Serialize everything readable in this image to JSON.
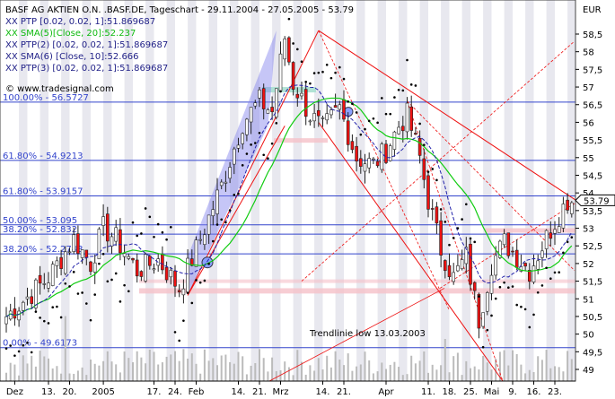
{
  "chart_data": {
    "type": "candlestick",
    "title": "BASF AG AKTIEN O.N. .BASF.DE, Tageschart - 29.11.2004 - 27.05.2005 - 53.79",
    "currency_label": "EUR",
    "indicators": [
      "XX PTP [0.02, 0.02, 1]:51.869687",
      "XX SMA(5)[Close, 20]:52.237",
      "XX PTP(2) [0.02, 0.02, 1]:51.869687",
      "XX SMA(6) [Close, 10]:52.666",
      "XX PTP(3) [0.02, 0.02, 1]:51.869687"
    ],
    "copyright": "© www.tradesignal.com",
    "last_price": "53.79",
    "annotation": "Trendlinie low 13.03.2003",
    "y_axis": {
      "ticks": [
        49,
        49.5,
        50,
        50.5,
        51,
        51.5,
        52,
        52.5,
        53,
        53.5,
        54,
        54.5,
        55,
        55.5,
        56,
        56.5,
        57,
        57.5,
        58,
        58.5
      ],
      "labels": [
        "49",
        "49,5",
        "50",
        "50,5",
        "51",
        "51,5",
        "52",
        "52,5",
        "53",
        "53,5",
        "54",
        "54,5",
        "55",
        "55,5",
        "56",
        "56,5",
        "57",
        "57,5",
        "58",
        "58,5"
      ],
      "range": [
        48.9,
        58.85
      ]
    },
    "x_axis": {
      "labels": [
        "Dez",
        "13.",
        "20.",
        "2005",
        "17.",
        "24.",
        "Feb",
        "14.",
        "21.",
        "Mrz",
        "14.",
        "21.",
        "Apr",
        "11.",
        "18.",
        "25.",
        "Mai",
        "9.",
        "16.",
        "23."
      ],
      "label_bar_index": [
        2,
        10,
        15,
        23,
        35,
        40,
        45,
        55,
        60,
        65,
        75,
        80,
        90,
        100,
        105,
        110,
        115,
        120,
        125,
        130
      ]
    },
    "fib_levels": [
      {
        "label": "100.00% - 56.5727",
        "value": 56.5727
      },
      {
        "label": "61.80% - 54.9213",
        "value": 54.9213
      },
      {
        "label": "61.80% - 53.9157",
        "value": 53.9157
      },
      {
        "label": "50.00% - 53.095",
        "value": 53.095
      },
      {
        "label": "38.20% - 52.832",
        "value": 52.832
      },
      {
        "label": "38.20% - 52.2743",
        "value": 52.2743
      },
      {
        "label": "0.00% - 49.6173",
        "value": 49.6173
      }
    ],
    "anchors": [
      {
        "bar": 0,
        "close": 50.5
      },
      {
        "bar": 10,
        "close": 51.6
      },
      {
        "bar": 16,
        "close": 52.7
      },
      {
        "bar": 20,
        "close": 52.0
      },
      {
        "bar": 23,
        "close": 53.0
      },
      {
        "bar": 26,
        "close": 52.7
      },
      {
        "bar": 31,
        "close": 51.8
      },
      {
        "bar": 36,
        "close": 52.1
      },
      {
        "bar": 41,
        "close": 51.3
      },
      {
        "bar": 45,
        "close": 52.4
      },
      {
        "bar": 51,
        "close": 54.2
      },
      {
        "bar": 56,
        "close": 56.0
      },
      {
        "bar": 60,
        "close": 56.6
      },
      {
        "bar": 63,
        "close": 56.3
      },
      {
        "bar": 66,
        "close": 58.4
      },
      {
        "bar": 68,
        "close": 57.1
      },
      {
        "bar": 72,
        "close": 56.2
      },
      {
        "bar": 75,
        "close": 55.8
      },
      {
        "bar": 79,
        "close": 56.4
      },
      {
        "bar": 83,
        "close": 55.0
      },
      {
        "bar": 87,
        "close": 54.8
      },
      {
        "bar": 90,
        "close": 55.2
      },
      {
        "bar": 93,
        "close": 55.9
      },
      {
        "bar": 95,
        "close": 56.2
      },
      {
        "bar": 98,
        "close": 55.0
      },
      {
        "bar": 100,
        "close": 53.8
      },
      {
        "bar": 103,
        "close": 52.4
      },
      {
        "bar": 106,
        "close": 51.6
      },
      {
        "bar": 109,
        "close": 52.2
      },
      {
        "bar": 112,
        "close": 50.4
      },
      {
        "bar": 115,
        "close": 52.0
      },
      {
        "bar": 118,
        "close": 52.6
      },
      {
        "bar": 121,
        "close": 52.2
      },
      {
        "bar": 124,
        "close": 51.8
      },
      {
        "bar": 127,
        "close": 52.5
      },
      {
        "bar": 130,
        "close": 53.2
      },
      {
        "bar": 133,
        "close": 53.8
      },
      {
        "bar": 134,
        "close": 53.79
      }
    ],
    "colors": {
      "background": "#ffffff",
      "stripe": "#e8e8ef",
      "fib_line": "#3344cc",
      "candle": "#ee1111",
      "sma20": "#11cc11",
      "sma10": "#2222aa",
      "channel": "#6666ee",
      "trend": "#ee1111",
      "volume": "#bbbbbb"
    }
  }
}
